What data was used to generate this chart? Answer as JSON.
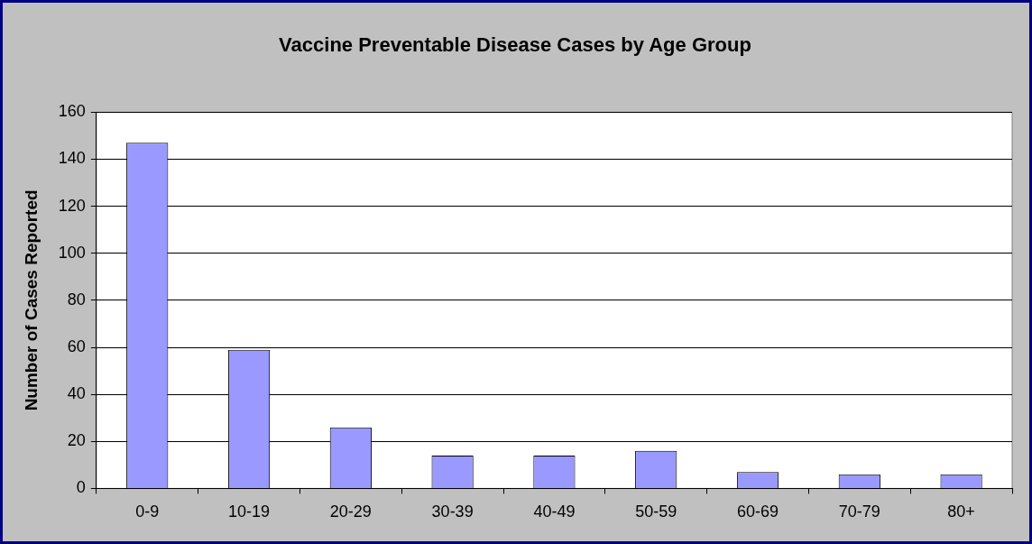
{
  "chart_data": {
    "type": "bar",
    "title": "Vaccine Preventable Disease Cases by Age Group",
    "ylabel": "Number of Cases Reported",
    "categories": [
      "0-9",
      "10-19",
      "20-29",
      "30-39",
      "40-49",
      "50-59",
      "60-69",
      "70-79",
      "80+"
    ],
    "values": [
      147,
      59,
      26,
      14,
      14,
      16,
      7,
      6,
      6
    ],
    "color": "#9999ff",
    "ylim": [
      0,
      160
    ],
    "yticks": [
      0,
      20,
      40,
      60,
      80,
      100,
      120,
      140,
      160
    ],
    "grid": "y",
    "legend": false
  }
}
